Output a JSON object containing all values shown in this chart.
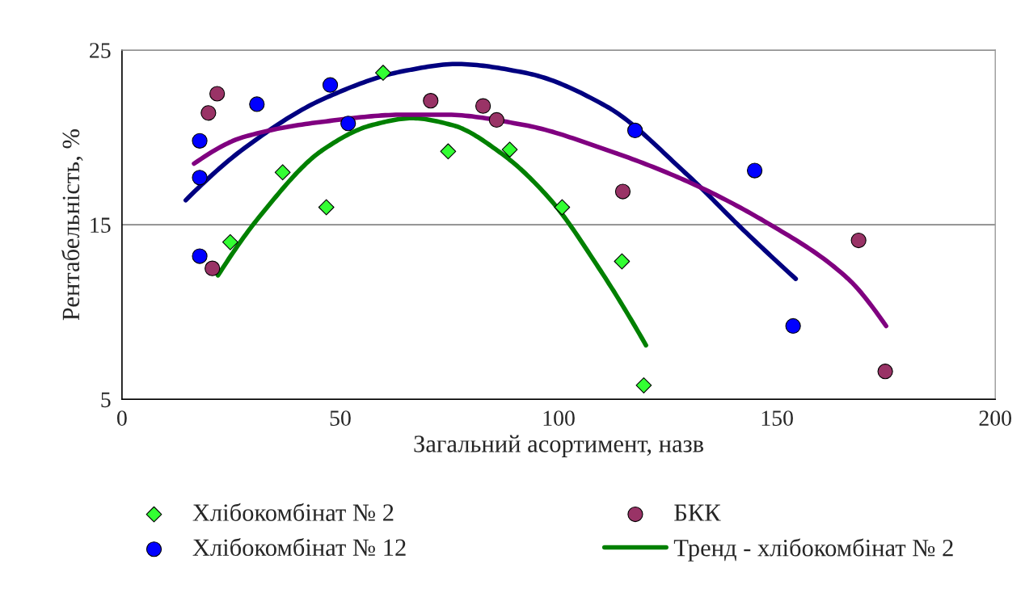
{
  "chart_data": {
    "type": "scatter",
    "xlabel": "Загальний асортимент, назв",
    "ylabel": "Рентабельність, %",
    "xlim": [
      0,
      200
    ],
    "xticks": [
      0,
      50,
      100,
      150,
      200
    ],
    "ylim": [
      5,
      25
    ],
    "yticks": [
      5,
      15,
      25
    ],
    "grid": "y",
    "legend": "bottom",
    "series": [
      {
        "name": "Хлібокомбінат № 2",
        "marker": "diamond",
        "color": "#33ff33",
        "x": [
          24.8,
          36.8,
          46.8,
          59.8,
          74.7,
          88.8,
          100.8,
          114.5,
          119.5
        ],
        "values": [
          14.0,
          18.0,
          16.0,
          23.7,
          19.2,
          19.3,
          16.0,
          12.9,
          5.8
        ]
      },
      {
        "name": "БКК",
        "marker": "circle",
        "color": "#993366",
        "x": [
          20.7,
          19.8,
          21.8,
          70.7,
          82.7,
          85.8,
          114.7,
          168.7,
          174.8
        ],
        "values": [
          12.5,
          21.4,
          22.5,
          22.1,
          21.8,
          21.0,
          16.9,
          14.1,
          6.6
        ]
      },
      {
        "name": "Хлібокомбінат № 12",
        "marker": "circle",
        "color": "#0000ff",
        "x": [
          17.8,
          17.8,
          17.8,
          30.9,
          47.7,
          51.8,
          117.5,
          144.9,
          153.7
        ],
        "values": [
          13.2,
          17.7,
          19.8,
          21.9,
          23.0,
          20.8,
          20.4,
          18.1,
          9.2
        ]
      },
      {
        "name": "Тренд - хлібокомбінат № 2",
        "type": "line",
        "marker": "none",
        "color": "#008000",
        "x": [
          22,
          31.3,
          46.1,
          57.2,
          66.4,
          75.7,
          86.8,
          97.9,
          109,
          120
        ],
        "values": [
          12.1,
          15.4,
          19.3,
          20.7,
          21.1,
          20.7,
          19.1,
          16.5,
          12.6,
          8.1
        ]
      },
      {
        "type": "line",
        "marker": "none",
        "color": "#000080",
        "x": [
          14.6,
          27.6,
          46.1,
          64.6,
          76.6,
          92.3,
          110.8,
          129.3,
          142.3,
          154.3
        ],
        "values": [
          16.4,
          19.3,
          22.2,
          23.8,
          24.2,
          23.7,
          21.8,
          17.9,
          14.7,
          11.9
        ]
      },
      {
        "type": "line",
        "marker": "none",
        "color": "#800080",
        "x": [
          16.5,
          27.6,
          46.1,
          64.6,
          73.8,
          92.3,
          110.8,
          129.3,
          147.8,
          166.3,
          175
        ],
        "values": [
          18.5,
          20.0,
          20.9,
          21.3,
          21.3,
          20.7,
          19.3,
          17.5,
          15.1,
          11.9,
          9.2
        ]
      }
    ]
  }
}
